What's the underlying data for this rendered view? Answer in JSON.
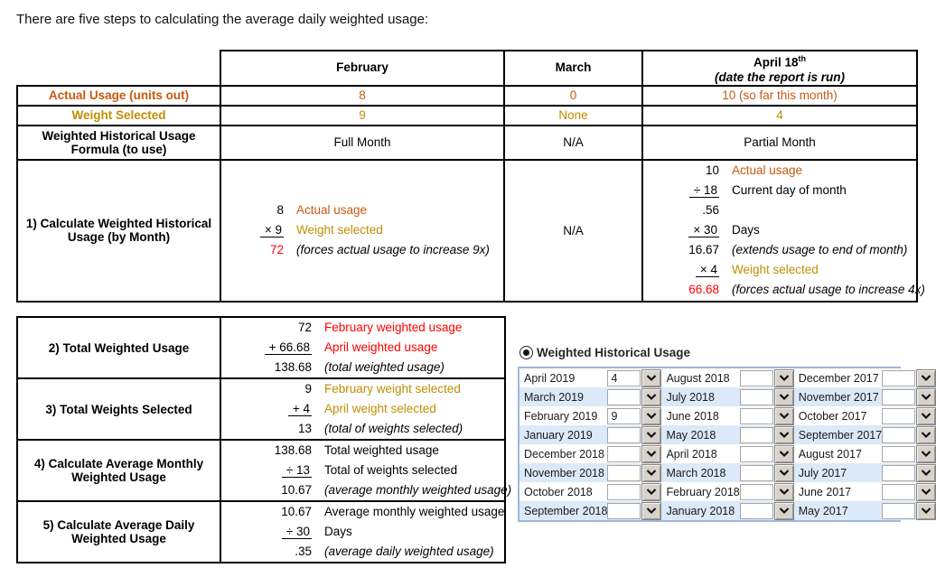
{
  "title": "There are five steps to calculating the average daily weighted usage:",
  "colors": {
    "orange": "#C55A11",
    "gold": "#BF8F00",
    "red": "#FF0000",
    "band_blue": "#DCE9F8",
    "grid_border": "#9CB9DB",
    "table_border": "#000000"
  },
  "table1": {
    "header": {
      "february": "February",
      "march": "March",
      "april": "April 18",
      "april_sup": "th",
      "april_note": "(date the report is run)"
    },
    "rows": [
      {
        "label": "Actual Usage (units out)",
        "feb": "8",
        "mar": "0",
        "apr": "10 (so far this month)"
      },
      {
        "label": "Weight Selected",
        "feb": "9",
        "mar": "None",
        "apr": "4"
      },
      {
        "label": "Weighted Historical Usage Formula (to use)",
        "feb": "Full Month",
        "mar": "N/A",
        "apr": "Partial Month"
      }
    ],
    "step1": {
      "label": "1) Calculate Weighted Historical Usage (by Month)",
      "march_value": "N/A",
      "feb_lines": [
        {
          "num": "8",
          "nc": "",
          "u": false,
          "lbl": "Actual usage",
          "lc": "orange"
        },
        {
          "num": "× 9",
          "nc": "",
          "u": true,
          "lbl": "Weight selected",
          "lc": "gold"
        },
        {
          "num": "72",
          "nc": "red",
          "u": false,
          "lbl": "(forces actual usage to increase 9x)",
          "lc": "ital"
        }
      ],
      "apr_lines": [
        {
          "num": "10",
          "nc": "",
          "u": false,
          "lbl": "Actual usage",
          "lc": "orange"
        },
        {
          "num": "÷ 18",
          "nc": "",
          "u": true,
          "lbl": "Current day of month",
          "lc": ""
        },
        {
          "num": ".56",
          "nc": "",
          "u": false,
          "lbl": "",
          "lc": ""
        },
        {
          "num": "× 30",
          "nc": "",
          "u": true,
          "lbl": "Days",
          "lc": ""
        },
        {
          "num": "16.67",
          "nc": "",
          "u": false,
          "lbl": "(extends usage to end of month)",
          "lc": "ital"
        },
        {
          "num": "× 4",
          "nc": "",
          "u": true,
          "lbl": "Weight selected",
          "lc": "gold"
        },
        {
          "num": "66.68",
          "nc": "red",
          "u": false,
          "lbl": "(forces actual usage to increase 4x)",
          "lc": "ital"
        }
      ]
    }
  },
  "table2": {
    "steps": [
      {
        "label": "2) Total Weighted Usage",
        "lines": [
          {
            "num": "72",
            "nc": "",
            "u": false,
            "lbl": "February weighted usage",
            "lc": "red"
          },
          {
            "num": "+ 66.68",
            "nc": "",
            "u": true,
            "lbl": "April weighted usage",
            "lc": "red"
          },
          {
            "num": "138.68",
            "nc": "",
            "u": false,
            "lbl": "(total weighted usage)",
            "lc": "ital"
          }
        ]
      },
      {
        "label": "3) Total Weights Selected",
        "lines": [
          {
            "num": "9",
            "nc": "",
            "u": false,
            "lbl": "February weight selected",
            "lc": "gold"
          },
          {
            "num": "+ 4",
            "nc": "",
            "u": true,
            "lbl": "April weight selected",
            "lc": "gold"
          },
          {
            "num": "13",
            "nc": "",
            "u": false,
            "lbl": "(total of weights selected)",
            "lc": "ital"
          }
        ]
      },
      {
        "label": "4) Calculate Average Monthly Weighted Usage",
        "lines": [
          {
            "num": "138.68",
            "nc": "",
            "u": false,
            "lbl": "Total weighted usage",
            "lc": ""
          },
          {
            "num": "÷ 13",
            "nc": "",
            "u": true,
            "lbl": "Total of weights selected",
            "lc": ""
          },
          {
            "num": "10.67",
            "nc": "",
            "u": false,
            "lbl": "(average monthly weighted usage)",
            "lc": "ital"
          }
        ]
      },
      {
        "label": "5) Calculate Average Daily Weighted Usage",
        "lines": [
          {
            "num": "10.67",
            "nc": "",
            "u": false,
            "lbl": "Average monthly weighted usage",
            "lc": ""
          },
          {
            "num": "÷ 30",
            "nc": "",
            "u": true,
            "lbl": "Days",
            "lc": ""
          },
          {
            "num": ".35",
            "nc": "",
            "u": false,
            "lbl": "(average daily weighted usage)",
            "lc": "ital"
          }
        ]
      }
    ]
  },
  "panel": {
    "radio_label": "Weighted Historical Usage",
    "grid": {
      "rows": [
        [
          {
            "month": "April 2019",
            "value": "4"
          },
          {
            "month": "August 2018",
            "value": ""
          },
          {
            "month": "December 2017",
            "value": ""
          }
        ],
        [
          {
            "month": "March 2019",
            "value": ""
          },
          {
            "month": "July 2018",
            "value": ""
          },
          {
            "month": "November 2017",
            "value": ""
          }
        ],
        [
          {
            "month": "February 2019",
            "value": "9"
          },
          {
            "month": "June 2018",
            "value": ""
          },
          {
            "month": "October 2017",
            "value": ""
          }
        ],
        [
          {
            "month": "January 2019",
            "value": ""
          },
          {
            "month": "May 2018",
            "value": ""
          },
          {
            "month": "September 2017",
            "value": ""
          }
        ],
        [
          {
            "month": "December 2018",
            "value": ""
          },
          {
            "month": "April 2018",
            "value": ""
          },
          {
            "month": "August 2017",
            "value": ""
          }
        ],
        [
          {
            "month": "November 2018",
            "value": ""
          },
          {
            "month": "March 2018",
            "value": ""
          },
          {
            "month": "July 2017",
            "value": ""
          }
        ],
        [
          {
            "month": "October 2018",
            "value": ""
          },
          {
            "month": "February 2018",
            "value": ""
          },
          {
            "month": "June 2017",
            "value": ""
          }
        ],
        [
          {
            "month": "September 2018",
            "value": ""
          },
          {
            "month": "January 2018",
            "value": ""
          },
          {
            "month": "May 2017",
            "value": ""
          }
        ]
      ]
    }
  }
}
